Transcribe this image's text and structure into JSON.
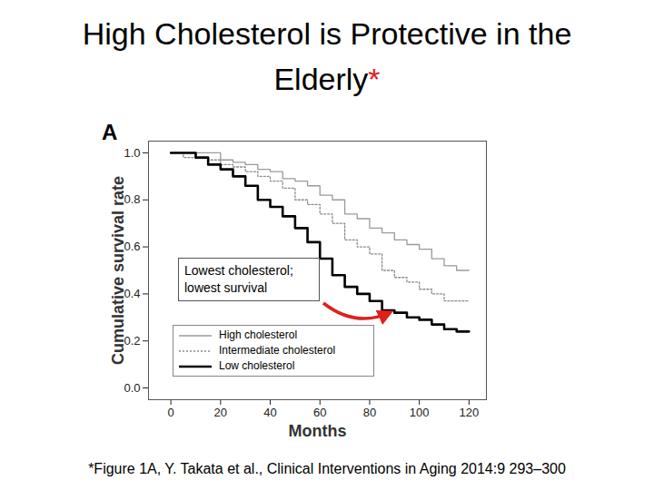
{
  "chart_data": {
    "type": "line",
    "title": "High Cholesterol is Protective in the Elderly*",
    "panel_label": "A",
    "xlabel": "Months",
    "ylabel": "Cumulative survival rate",
    "x": [
      0,
      5,
      10,
      15,
      20,
      25,
      30,
      35,
      40,
      45,
      50,
      55,
      60,
      65,
      70,
      75,
      80,
      85,
      90,
      95,
      100,
      105,
      110,
      115,
      120
    ],
    "series": [
      {
        "name": "High cholesterol",
        "color": "#9a9a9a",
        "line_style": "solid",
        "values": [
          1.0,
          1.0,
          1.0,
          1.0,
          0.97,
          0.96,
          0.95,
          0.93,
          0.92,
          0.89,
          0.88,
          0.86,
          0.82,
          0.8,
          0.74,
          0.72,
          0.68,
          0.66,
          0.63,
          0.61,
          0.59,
          0.55,
          0.52,
          0.5,
          0.5
        ]
      },
      {
        "name": "Intermediate cholesterol",
        "color": "#8a8a8a",
        "line_style": "dotted",
        "values": [
          1.0,
          0.98,
          0.98,
          0.97,
          0.95,
          0.94,
          0.92,
          0.9,
          0.88,
          0.85,
          0.8,
          0.78,
          0.74,
          0.7,
          0.63,
          0.6,
          0.57,
          0.5,
          0.47,
          0.45,
          0.42,
          0.4,
          0.37,
          0.37,
          0.37
        ]
      },
      {
        "name": "Low cholesterol",
        "color": "#000000",
        "line_style": "solid",
        "values": [
          1.0,
          1.0,
          0.98,
          0.95,
          0.93,
          0.9,
          0.86,
          0.8,
          0.77,
          0.73,
          0.68,
          0.62,
          0.55,
          0.48,
          0.43,
          0.4,
          0.37,
          0.33,
          0.32,
          0.3,
          0.29,
          0.27,
          0.25,
          0.24,
          0.24
        ]
      }
    ],
    "xlim": [
      -9,
      127
    ],
    "ylim": [
      -0.05,
      1.05
    ],
    "xticks": [
      0,
      20,
      40,
      60,
      80,
      100,
      120
    ],
    "yticks": [
      {
        "value": 0,
        "label": "0.0"
      },
      {
        "value": 0.2,
        "label": "0.2"
      },
      {
        "value": 0.4,
        "label": "0.4"
      },
      {
        "value": 0.6,
        "label": "0.6"
      },
      {
        "value": 0.8,
        "label": "0.8"
      },
      {
        "value": 1.0,
        "label": "1.0"
      }
    ],
    "legend": "bottom-left",
    "annotations": [
      {
        "text": "Lowest cholesterol;\nlowest survival"
      }
    ],
    "caption": "*Figure 1A, Y. Takata et al., Clinical Interventions in Aging 2014:9 293–300"
  }
}
